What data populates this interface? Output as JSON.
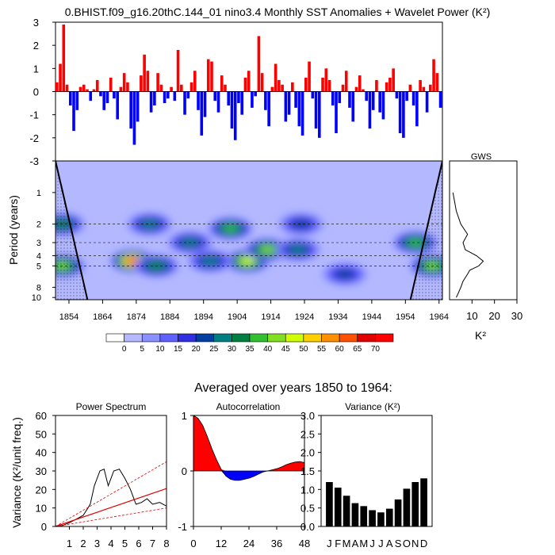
{
  "main_title": "0.BHIST.f09_g16.20thC.144_01 nino3.4 Monthly SST Anomalies + Wavelet Power (K²)",
  "averaged_title": "Averaged over years 1850 to 1964:",
  "colors": {
    "positive": "#ff0000",
    "negative": "#0000ff",
    "bar": "#000000",
    "coi": "#000000",
    "wavelet_background": "#b3b8ff"
  },
  "chart_data": [
    {
      "id": "sst_anomalies",
      "type": "bar",
      "title": "Monthly SST Anomalies",
      "xlim": [
        1850,
        1965
      ],
      "ylim": [
        -3,
        3
      ],
      "yticks": [
        "3",
        "2",
        "1",
        "0",
        "-1",
        "-2",
        "-3"
      ],
      "series": [
        {
          "name": "anomaly",
          "years": [
            1850,
            1851,
            1852,
            1853,
            1854,
            1855,
            1856,
            1857,
            1858,
            1859,
            1860,
            1861,
            1862,
            1863,
            1864,
            1865,
            1866,
            1867,
            1868,
            1869,
            1870,
            1871,
            1872,
            1873,
            1874,
            1875,
            1876,
            1877,
            1878,
            1879,
            1880,
            1881,
            1882,
            1883,
            1884,
            1885,
            1886,
            1887,
            1888,
            1889,
            1890,
            1891,
            1892,
            1893,
            1894,
            1895,
            1896,
            1897,
            1898,
            1899,
            1900,
            1901,
            1902,
            1903,
            1904,
            1905,
            1906,
            1907,
            1908,
            1909,
            1910,
            1911,
            1912,
            1913,
            1914,
            1915,
            1916,
            1917,
            1918,
            1919,
            1920,
            1921,
            1922,
            1923,
            1924,
            1925,
            1926,
            1927,
            1928,
            1929,
            1930,
            1931,
            1932,
            1933,
            1934,
            1935,
            1936,
            1937,
            1938,
            1939,
            1940,
            1941,
            1942,
            1943,
            1944,
            1945,
            1946,
            1947,
            1948,
            1949,
            1950,
            1951,
            1952,
            1953,
            1954,
            1955,
            1956,
            1957,
            1958,
            1959,
            1960,
            1961,
            1962,
            1963,
            1964
          ],
          "values": [
            0.4,
            1.2,
            2.9,
            0.3,
            -0.6,
            -1.7,
            -0.8,
            0.2,
            0.3,
            0.1,
            -0.4,
            0.1,
            0.5,
            -0.2,
            -0.8,
            -0.5,
            0.6,
            -0.3,
            -1.2,
            0.2,
            0.8,
            0.4,
            -1.6,
            -2.3,
            -1.3,
            0.7,
            1.6,
            0.9,
            -0.9,
            -0.6,
            0.8,
            0.3,
            -0.5,
            -0.3,
            0.2,
            -0.4,
            1.8,
            0.3,
            -1.0,
            -0.3,
            0.4,
            0.9,
            -0.8,
            -1.9,
            -1.1,
            1.4,
            1.3,
            -0.4,
            -0.9,
            0.7,
            0.3,
            -0.6,
            -1.6,
            -2.1,
            -0.5,
            -1.0,
            0.6,
            0.9,
            -0.7,
            -0.2,
            2.4,
            0.8,
            -0.8,
            -1.5,
            0.2,
            1.2,
            0.5,
            0.3,
            -1.3,
            -1.0,
            0.4,
            -0.7,
            -1.5,
            -1.9,
            0.6,
            1.3,
            -0.3,
            -1.6,
            -2.0,
            0.6,
            1.0,
            0.5,
            -0.6,
            -1.8,
            -0.5,
            0.3,
            0.9,
            -0.7,
            -1.3,
            0.2,
            0.7,
            0.1,
            -0.4,
            -1.6,
            -0.8,
            0.5,
            -0.9,
            -1.2,
            0.4,
            0.6,
            1.0,
            -0.3,
            -1.8,
            -2.0,
            -0.4,
            0.3,
            -0.6,
            -1.5,
            0.5,
            0.2,
            -0.9,
            0.3,
            1.4,
            0.8,
            -0.7
          ]
        }
      ]
    },
    {
      "id": "wavelet_power",
      "type": "heatmap",
      "ylabel": "Period (years)",
      "xlim": [
        1850,
        1965
      ],
      "xticks": [
        1854,
        1864,
        1874,
        1884,
        1894,
        1904,
        1914,
        1924,
        1934,
        1944,
        1954,
        1964
      ],
      "yticks": [
        1,
        2,
        3,
        4,
        5,
        8,
        10
      ],
      "yrange_years": [
        0.5,
        10.5
      ],
      "blobs": [
        {
          "x": 1852,
          "period": 2.0,
          "power": 30
        },
        {
          "x": 1852,
          "period": 5.0,
          "power": 40
        },
        {
          "x": 1873,
          "period": 4.5,
          "power": 60
        },
        {
          "x": 1880,
          "period": 5.0,
          "power": 30
        },
        {
          "x": 1878,
          "period": 2.0,
          "power": 25
        },
        {
          "x": 1890,
          "period": 3.0,
          "power": 25
        },
        {
          "x": 1902,
          "period": 2.2,
          "power": 35
        },
        {
          "x": 1907,
          "period": 4.5,
          "power": 45
        },
        {
          "x": 1913,
          "period": 3.5,
          "power": 40
        },
        {
          "x": 1896,
          "period": 4.5,
          "power": 25
        },
        {
          "x": 1922,
          "period": 3.5,
          "power": 25
        },
        {
          "x": 1923,
          "period": 2.0,
          "power": 20
        },
        {
          "x": 1936,
          "period": 6.0,
          "power": 20
        },
        {
          "x": 1957,
          "period": 3.0,
          "power": 35
        },
        {
          "x": 1962,
          "period": 5.0,
          "power": 40
        }
      ]
    },
    {
      "id": "gws",
      "type": "line",
      "title": "GWS",
      "xlabel": "K²",
      "xlim": [
        0,
        30
      ],
      "xticks": [
        10,
        20,
        30
      ],
      "period": [
        1,
        1.5,
        2,
        2.5,
        3,
        3.5,
        4,
        4.5,
        5,
        5.5,
        6,
        7,
        8,
        9,
        10
      ],
      "power": [
        1.5,
        3,
        5,
        8,
        6,
        7,
        12,
        15,
        13,
        9,
        8,
        6,
        5,
        4,
        3
      ]
    },
    {
      "id": "power_spectrum",
      "type": "line",
      "title": "Power Spectrum",
      "ylabel": "Variance (K²/unit freq.)",
      "xlim": [
        0,
        8
      ],
      "ylim": [
        0,
        60
      ],
      "xticks": [
        "1",
        "2",
        "3",
        "4",
        "5",
        "6",
        "7",
        "8"
      ],
      "yticks": [
        "0",
        "10",
        "20",
        "30",
        "40",
        "50",
        "60"
      ],
      "series": [
        {
          "name": "spectrum",
          "x": [
            0,
            0.5,
            1,
            1.5,
            2,
            2.5,
            2.8,
            3.2,
            3.5,
            3.8,
            4.2,
            4.6,
            5,
            5.4,
            5.8,
            6.2,
            6.6,
            7,
            7.5,
            8
          ],
          "y": [
            0,
            0.5,
            2,
            4,
            6,
            12,
            22,
            30,
            31,
            22,
            30,
            31,
            26,
            20,
            12,
            13,
            15,
            12,
            13,
            11
          ]
        },
        {
          "name": "red noise",
          "x": [
            0,
            8
          ],
          "y": [
            0,
            20.5
          ]
        },
        {
          "name": "upper 95%",
          "x": [
            0,
            8
          ],
          "y": [
            0,
            35
          ]
        },
        {
          "name": "lower 5%",
          "x": [
            0,
            8
          ],
          "y": [
            0,
            10
          ]
        }
      ]
    },
    {
      "id": "autocorrelation",
      "type": "area",
      "title": "Autocorrelation",
      "xlim": [
        0,
        48
      ],
      "ylim": [
        -1,
        1
      ],
      "xticks": [
        "0",
        "12",
        "24",
        "36",
        "48"
      ],
      "yticks": [
        "1",
        "0",
        "-1"
      ],
      "lag": [
        0,
        2,
        4,
        6,
        8,
        10,
        12,
        14,
        16,
        18,
        20,
        22,
        24,
        26,
        28,
        30,
        32,
        34,
        36,
        38,
        40,
        42,
        44,
        46,
        48
      ],
      "value": [
        1.0,
        0.95,
        0.82,
        0.62,
        0.4,
        0.2,
        0.03,
        -0.09,
        -0.15,
        -0.17,
        -0.17,
        -0.15,
        -0.13,
        -0.1,
        -0.06,
        -0.02,
        0.0,
        0.02,
        0.04,
        0.07,
        0.11,
        0.14,
        0.16,
        0.17,
        0.15
      ]
    },
    {
      "id": "variance",
      "type": "bar",
      "title": "Variance (K²)",
      "categories": [
        "J",
        "F",
        "M",
        "A",
        "M",
        "J",
        "J",
        "A",
        "S",
        "O",
        "N",
        "D"
      ],
      "values": [
        1.2,
        1.05,
        0.83,
        0.63,
        0.55,
        0.44,
        0.38,
        0.48,
        0.73,
        1.02,
        1.2,
        1.3
      ],
      "ylim": [
        0,
        3
      ],
      "yticks": [
        "3.0",
        "2.5",
        "2.0",
        "1.5",
        "1.0",
        "0.5",
        "0.0"
      ]
    },
    {
      "id": "colorbar",
      "type": "table",
      "labels": [
        "0",
        "5",
        "10",
        "15",
        "20",
        "25",
        "30",
        "35",
        "40",
        "45",
        "50",
        "55",
        "60",
        "65",
        "70"
      ],
      "colors": [
        "#ffffff",
        "#b3b8ff",
        "#8a90ff",
        "#6060ff",
        "#3030e0",
        "#0040a0",
        "#008080",
        "#008040",
        "#30c030",
        "#80e020",
        "#d0ff00",
        "#ffd000",
        "#ff9000",
        "#ff5000",
        "#e00000",
        "#ff0000"
      ]
    }
  ]
}
